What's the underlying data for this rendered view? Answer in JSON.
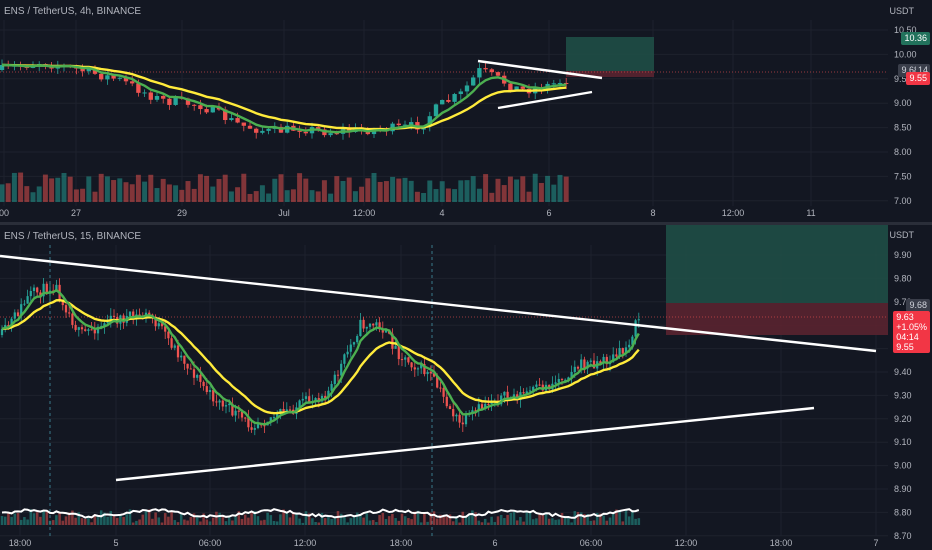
{
  "top": {
    "header": "ENS / TetherUS, 4h, BINANCE",
    "unit": "USDT",
    "yticks": [
      "10.50",
      "10.00",
      "9.50",
      "9.00",
      "8.50",
      "8.00",
      "7.50",
      "7.00"
    ],
    "xticks": [
      "00",
      "27",
      "29",
      "Jul",
      "12:00",
      "4",
      "6",
      "8",
      "12:00",
      "11"
    ],
    "price_labels": {
      "target": "10.36",
      "current": "9.68",
      "current_suffix": "14",
      "stop": "9.55"
    }
  },
  "bottom": {
    "header": "ENS / TetherUS, 15, BINANCE",
    "unit": "USDT",
    "yticks": [
      "9.90",
      "9.80",
      "9.70",
      "9.60",
      "9.50",
      "9.40",
      "9.30",
      "9.20",
      "9.10",
      "9.00",
      "8.90",
      "8.80",
      "8.70"
    ],
    "xticks": [
      "18:00",
      "5",
      "06:00",
      "12:00",
      "18:00",
      "6",
      "06:00",
      "12:00",
      "18:00",
      "7"
    ],
    "price_labels": {
      "current": "9.68",
      "last_price": "9.63",
      "change": "+1.05%",
      "countdown": "04:14",
      "stop": "9.55"
    }
  },
  "colors": {
    "background": "#131722",
    "up": "#26a69a",
    "down": "#ef5350",
    "ma_fast": "#4caf50",
    "ma_slow": "#ffeb3b",
    "trendline": "#ffffff",
    "target_zone": "#1f4e46",
    "stop_zone": "#5a2330"
  }
}
